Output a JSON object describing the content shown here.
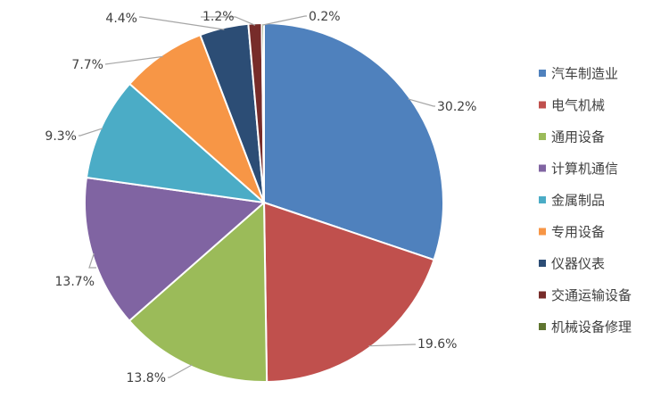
{
  "chart_data": {
    "type": "pie",
    "categories": [
      "汽车制造业",
      "电气机械",
      "通用设备",
      "计算机通信",
      "金属制品",
      "专用设备",
      "仪器仪表",
      "交通运输设备",
      "机械设备修理"
    ],
    "values": [
      30.2,
      19.6,
      13.8,
      13.7,
      9.3,
      7.7,
      4.4,
      1.2,
      0.2
    ],
    "data_labels": [
      "30.2%",
      "19.6%",
      "13.8%",
      "13.7%",
      "9.3%",
      "7.7%",
      "4.4%",
      "1.2%",
      "0.2%"
    ],
    "colors": [
      "#4F81BD",
      "#C0504D",
      "#9BBB59",
      "#8064A2",
      "#4BACC6",
      "#F79646",
      "#2C4D75",
      "#772C2A",
      "#5F7530"
    ],
    "legend_position": "right",
    "start_angle": "top, clockwise"
  }
}
